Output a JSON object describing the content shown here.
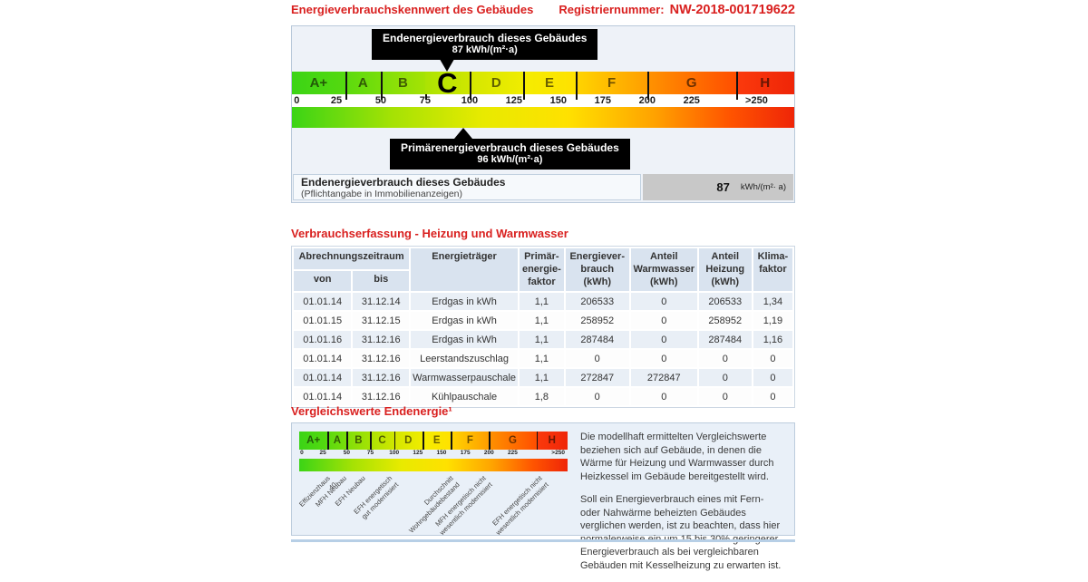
{
  "page": {
    "header_title": "Energieverbrauchskennwert des Gebäudes",
    "reg_label": "Registriernummer:",
    "reg_number": "NW-2018-001719622",
    "accent_red": "#d9201f"
  },
  "scale": {
    "bands": [
      {
        "letter": "A+",
        "width_pct": 10.61,
        "color_left": "#3bd416",
        "color_right": "#55d90f"
      },
      {
        "letter": "A",
        "width_pct": 7.07,
        "color_left": "#5cda0e",
        "color_right": "#78de0a"
      },
      {
        "letter": "B",
        "width_pct": 8.84,
        "color_left": "#7fdf09",
        "color_right": "#a5e204"
      },
      {
        "letter": "C",
        "width_pct": 8.84,
        "color_left": "#abe303",
        "color_right": "#cfe600",
        "current": true
      },
      {
        "letter": "D",
        "width_pct": 10.61,
        "color_left": "#d4e700",
        "color_right": "#f0ec00"
      },
      {
        "letter": "E",
        "width_pct": 10.61,
        "color_left": "#f4ed00",
        "color_right": "#ffe100"
      },
      {
        "letter": "F",
        "width_pct": 14.14,
        "color_left": "#ffd500",
        "color_right": "#ff9e00"
      },
      {
        "letter": "G",
        "width_pct": 17.68,
        "color_left": "#ff9300",
        "color_right": "#ff4e00"
      },
      {
        "letter": "H",
        "width_pct": 11.6,
        "color_left": "#fb3a0c",
        "color_right": "#ef2508"
      }
    ],
    "separator_positions_pct": [
      10.61,
      17.68,
      26.52,
      35.36,
      45.97,
      56.58,
      70.72,
      88.4
    ],
    "ticks": [
      {
        "label": "0",
        "pos_pct": 0.4,
        "edge": "left"
      },
      {
        "label": "25",
        "pos_pct": 8.84
      },
      {
        "label": "50",
        "pos_pct": 17.68
      },
      {
        "label": "75",
        "pos_pct": 26.52
      },
      {
        "label": "100",
        "pos_pct": 35.36
      },
      {
        "label": "125",
        "pos_pct": 44.2
      },
      {
        "label": "150",
        "pos_pct": 53.04
      },
      {
        "label": "175",
        "pos_pct": 61.88
      },
      {
        "label": "200",
        "pos_pct": 70.72
      },
      {
        "label": "225",
        "pos_pct": 79.56
      },
      {
        "label": ">250",
        "pos_pct": 92.5
      }
    ],
    "gradient_stops": [
      "#3bd416",
      "#a5e204",
      "#e8ea00",
      "#ffe100",
      "#ffa300",
      "#ff5500",
      "#ef2508"
    ],
    "tooltip_top": {
      "line1": "Endenergieverbrauch dieses Gebäudes",
      "line2": "87 kWh/(m²·a)",
      "arrow_pos_pct": 30.9
    },
    "tooltip_bottom": {
      "line1": "Primärenergieverbrauch dieses Gebäudes",
      "line2": "96 kWh/(m²·a)",
      "arrow_pos_pct": 34.2
    },
    "result_row": {
      "title": "Endenergieverbrauch dieses Gebäudes",
      "subtitle": "(Pflichtangabe in Immobilienanzeigen)",
      "value": "87",
      "unit": "kWh/(m²· a)"
    }
  },
  "consumption_table": {
    "title": "Verbrauchserfassung - Heizung und Warmwasser",
    "header": {
      "abrechnungszeitraum": "Abrechnungszeitraum",
      "von": "von",
      "bis": "bis",
      "energietraeger": "Energieträger",
      "primaerfaktor": "Primär-\nenergie-\nfaktor",
      "energieverbrauch": "Energiever-\nbrauch\n(kWh)",
      "anteil_warmwasser": "Anteil\nWarmwasser\n(kWh)",
      "anteil_heizung": "Anteil\nHeizung\n(kWh)",
      "klimafaktor": "Klima-\nfaktor"
    },
    "rows": [
      [
        "01.01.14",
        "31.12.14",
        "Erdgas in kWh",
        "1,1",
        "206533",
        "0",
        "206533",
        "1,34"
      ],
      [
        "01.01.15",
        "31.12.15",
        "Erdgas in kWh",
        "1,1",
        "258952",
        "0",
        "258952",
        "1,19"
      ],
      [
        "01.01.16",
        "31.12.16",
        "Erdgas in kWh",
        "1,1",
        "287484",
        "0",
        "287484",
        "1,16"
      ],
      [
        "01.01.14",
        "31.12.16",
        "Leerstandszuschlag",
        "1,1",
        "0",
        "0",
        "0",
        "0"
      ],
      [
        "01.01.14",
        "31.12.16",
        "Warmwasserpauschale",
        "1,1",
        "272847",
        "272847",
        "0",
        "0"
      ],
      [
        "01.01.14",
        "31.12.16",
        "Kühlpauschale",
        "1,8",
        "0",
        "0",
        "0",
        "0"
      ]
    ]
  },
  "comparison": {
    "title": "Vergleichswerte Endenergie¹",
    "labels": [
      {
        "text": "Effizienzhaus 40",
        "pos_pct": 10
      },
      {
        "text": "MFH Neubau",
        "pos_pct": 16
      },
      {
        "text": "EFH Neubau",
        "pos_pct": 23
      },
      {
        "text": "EFH energetisch\ngut modernisiert",
        "pos_pct": 33
      },
      {
        "text": "Durchschnitt\nWohngebäudebestand",
        "pos_pct": 56
      },
      {
        "text": "MFH energetisch nicht\nwesentlich modernisiert",
        "pos_pct": 68
      },
      {
        "text": "EFH energetisch nicht\nwesentlich modernisiert",
        "pos_pct": 89
      }
    ],
    "paragraphs": [
      "Die modellhaft ermittelten Vergleichswerte beziehen sich auf Gebäude, in denen die Wärme für Heizung und Warmwasser durch Heizkessel im Gebäude bereitgestellt wird.",
      "Soll ein Energieverbrauch eines mit Fern- oder Nahwärme beheizten Gebäudes verglichen werden, ist zu beachten, dass hier normalerweise ein um 15 bis 30% geringerer Energieverbrauch als bei vergleichbaren Gebäuden mit Kesselheizung zu erwarten ist."
    ]
  }
}
